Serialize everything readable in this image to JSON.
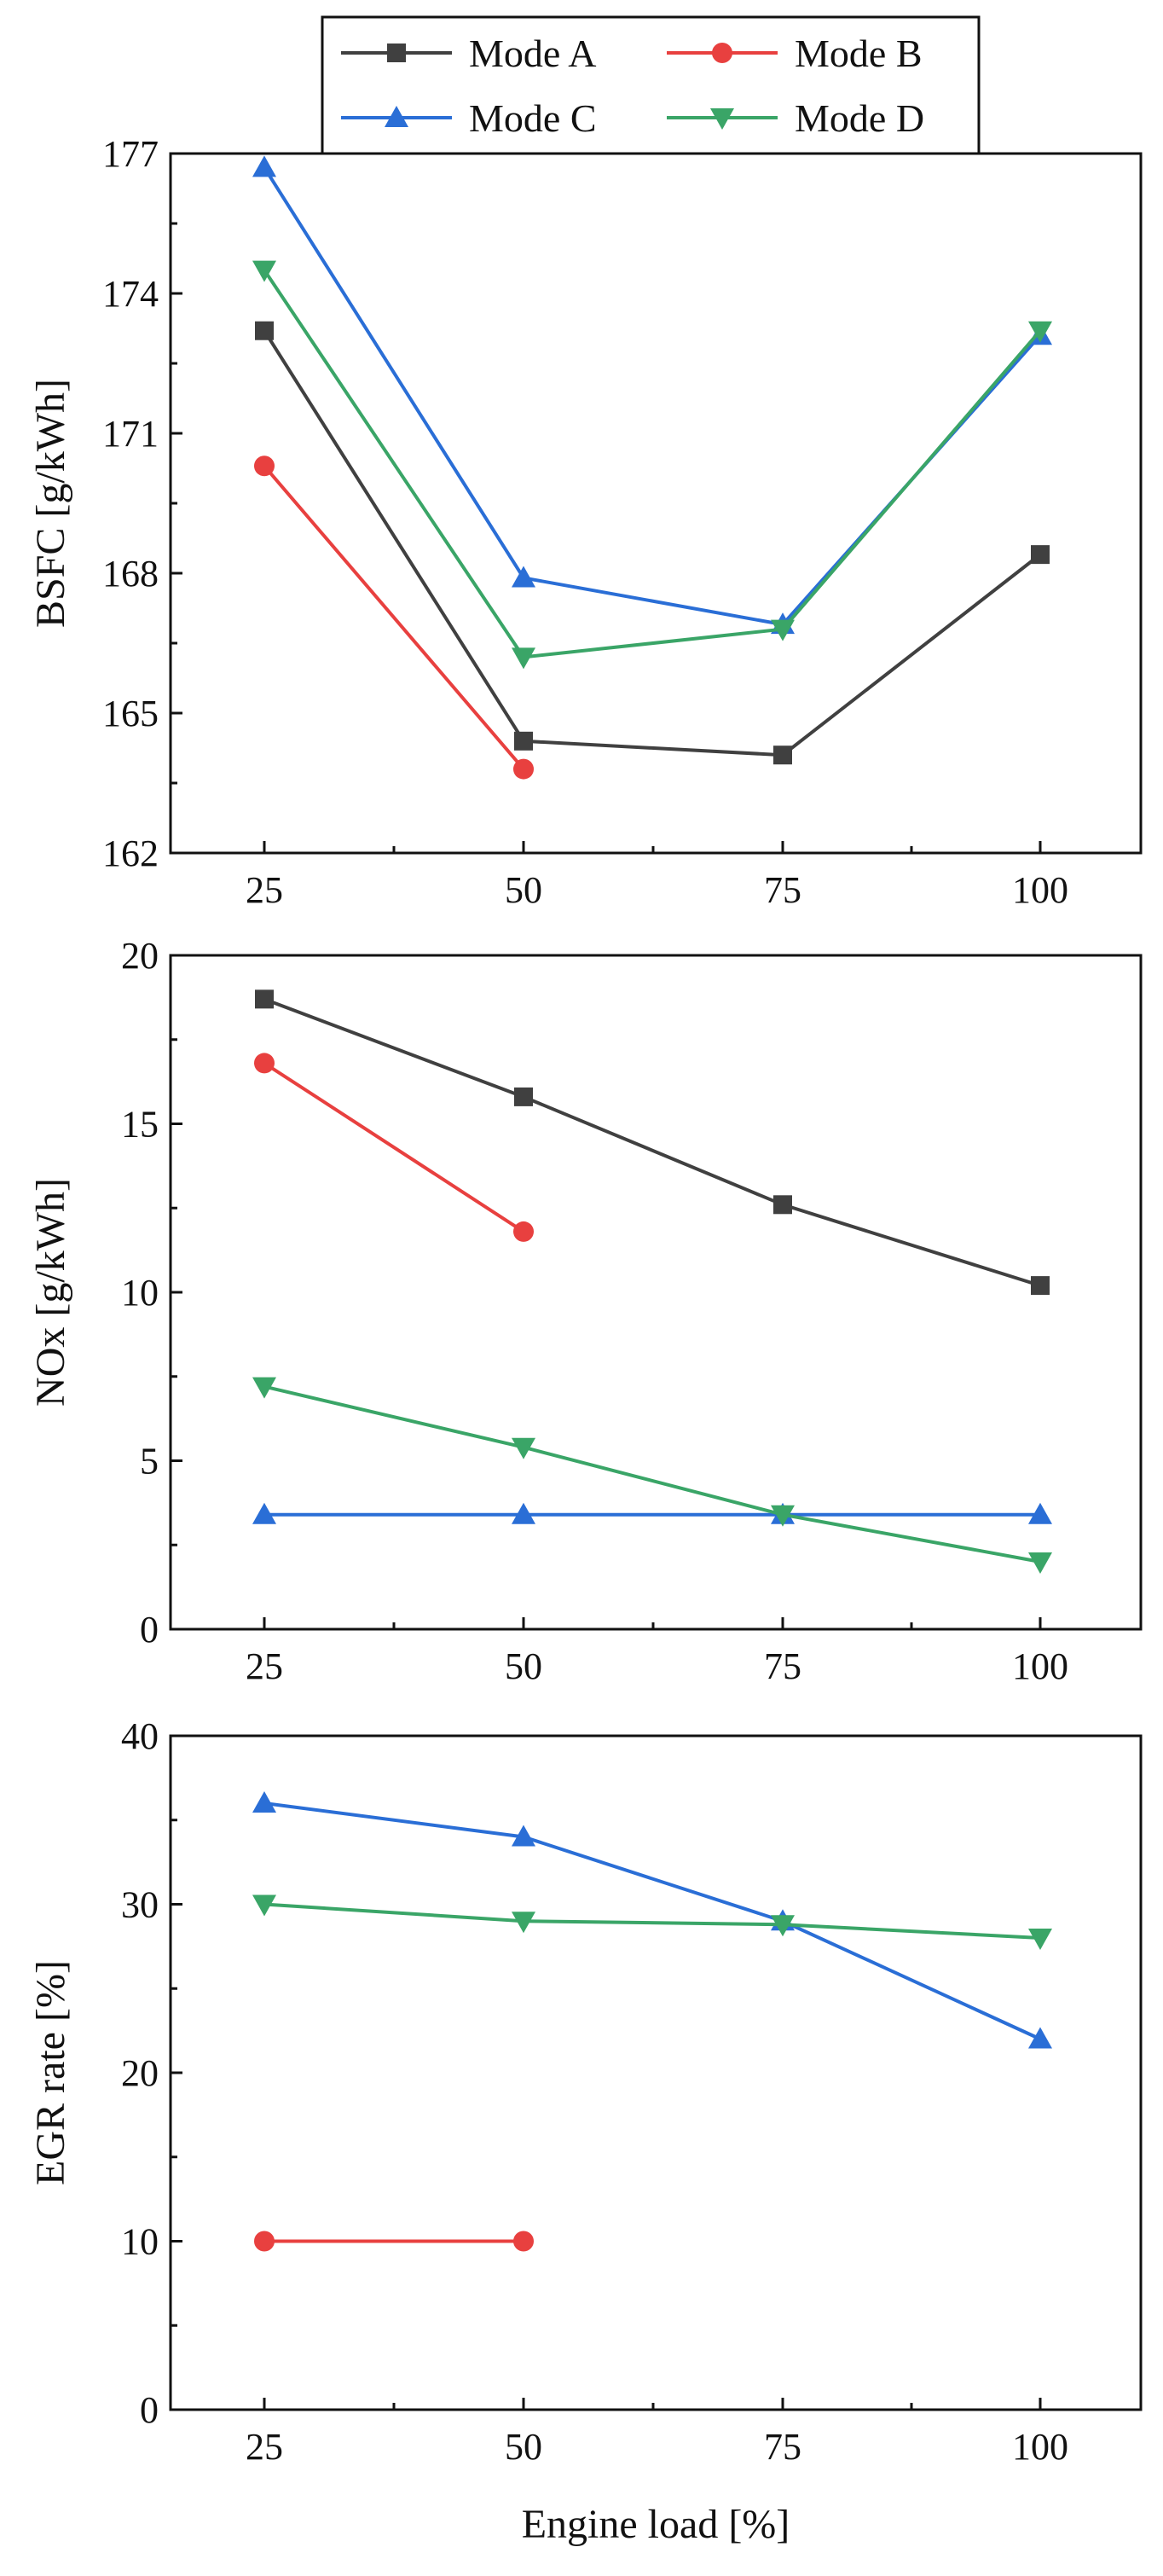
{
  "chart_data": [
    {
      "type": "line",
      "title": "",
      "xlabel": "",
      "ylabel": "BSFC [g/kWh]",
      "x": [
        25,
        50,
        75,
        100
      ],
      "xticks": [
        "25",
        "50",
        "75",
        "100"
      ],
      "yticks": [
        "162",
        "165",
        "168",
        "171",
        "174",
        "177"
      ],
      "ylim": [
        162,
        177
      ],
      "grid": false,
      "series": [
        {
          "name": "Mode A",
          "values": [
            173.2,
            164.4,
            164.1,
            168.4
          ]
        },
        {
          "name": "Mode B",
          "values": [
            170.3,
            163.8,
            null,
            null
          ]
        },
        {
          "name": "Mode C",
          "values": [
            176.7,
            167.9,
            166.9,
            173.1
          ]
        },
        {
          "name": "Mode D",
          "values": [
            174.5,
            166.2,
            166.8,
            173.2
          ]
        }
      ]
    },
    {
      "type": "line",
      "title": "",
      "xlabel": "",
      "ylabel": "NOx [g/kWh]",
      "x": [
        25,
        50,
        75,
        100
      ],
      "xticks": [
        "25",
        "50",
        "75",
        "100"
      ],
      "yticks": [
        "0",
        "5",
        "10",
        "15",
        "20"
      ],
      "ylim": [
        0,
        20
      ],
      "grid": false,
      "series": [
        {
          "name": "Mode A",
          "values": [
            18.7,
            15.8,
            12.6,
            10.2
          ]
        },
        {
          "name": "Mode B",
          "values": [
            16.8,
            11.8,
            null,
            null
          ]
        },
        {
          "name": "Mode C",
          "values": [
            3.4,
            3.4,
            3.4,
            3.4
          ]
        },
        {
          "name": "Mode D",
          "values": [
            7.2,
            5.4,
            3.4,
            2.0
          ]
        }
      ]
    },
    {
      "type": "line",
      "title": "",
      "xlabel": "Engine load [%]",
      "ylabel": "EGR rate [%]",
      "x": [
        25,
        50,
        75,
        100
      ],
      "xticks": [
        "25",
        "50",
        "75",
        "100"
      ],
      "yticks": [
        "0",
        "10",
        "20",
        "30",
        "40"
      ],
      "ylim": [
        0,
        40
      ],
      "grid": false,
      "series": [
        {
          "name": "Mode B",
          "values": [
            10,
            10,
            null,
            null
          ]
        },
        {
          "name": "Mode C",
          "values": [
            36,
            34,
            29,
            22
          ]
        },
        {
          "name": "Mode D",
          "values": [
            30,
            29,
            28.8,
            28
          ]
        }
      ]
    }
  ],
  "legend": {
    "placement": "top-center",
    "items": [
      {
        "name": "Mode A",
        "color": "#404040",
        "marker": "square"
      },
      {
        "name": "Mode B",
        "color": "#e8403f",
        "marker": "circle"
      },
      {
        "name": "Mode C",
        "color": "#2a6ed6",
        "marker": "triangle-up"
      },
      {
        "name": "Mode D",
        "color": "#3aa567",
        "marker": "triangle-down"
      }
    ]
  }
}
